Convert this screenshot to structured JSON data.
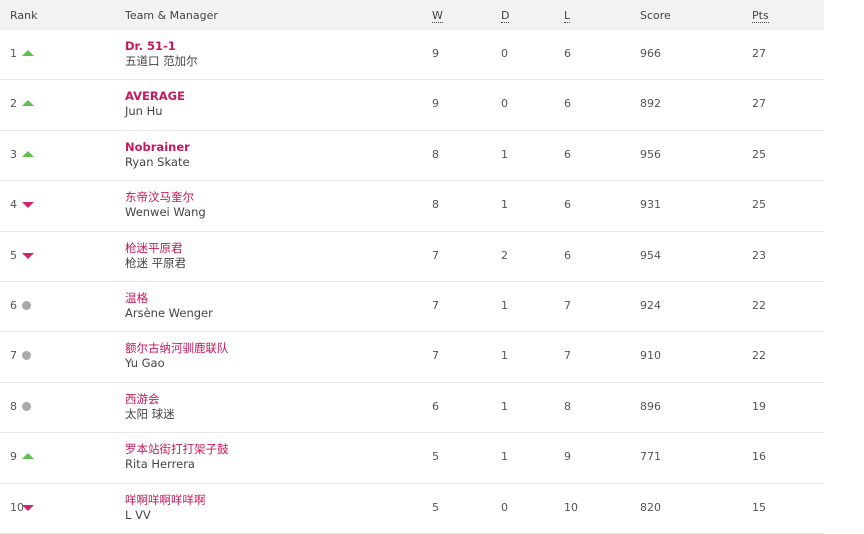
{
  "headers": {
    "rank": "Rank",
    "team": "Team & Manager",
    "w": "W",
    "d": "D",
    "l": "L",
    "score": "Score",
    "pts": "Pts"
  },
  "colors": {
    "team": "#c8185a",
    "up": "#5cc04a",
    "down": "#d0246a",
    "same": "#aaaaaa",
    "header_bg": "#f2f2f2"
  },
  "rows": [
    {
      "rank": "1",
      "trend": "up",
      "team": "Dr. 51-1",
      "bold": true,
      "manager": "五道口 范加尔",
      "w": "9",
      "d": "0",
      "l": "6",
      "score": "966",
      "pts": "27"
    },
    {
      "rank": "2",
      "trend": "up",
      "team": "AVERAGE",
      "bold": true,
      "manager": "Jun Hu",
      "w": "9",
      "d": "0",
      "l": "6",
      "score": "892",
      "pts": "27"
    },
    {
      "rank": "3",
      "trend": "up",
      "team": "Nobrainer",
      "bold": true,
      "manager": "Ryan Skate",
      "w": "8",
      "d": "1",
      "l": "6",
      "score": "956",
      "pts": "25"
    },
    {
      "rank": "4",
      "trend": "down",
      "team": "东帝汶马奎尔",
      "bold": false,
      "manager": "Wenwei Wang",
      "w": "8",
      "d": "1",
      "l": "6",
      "score": "931",
      "pts": "25"
    },
    {
      "rank": "5",
      "trend": "down",
      "team": "枪迷平原君",
      "bold": false,
      "manager": "枪迷 平原君",
      "w": "7",
      "d": "2",
      "l": "6",
      "score": "954",
      "pts": "23"
    },
    {
      "rank": "6",
      "trend": "same",
      "team": "温格",
      "bold": false,
      "manager": "Arsène Wenger",
      "w": "7",
      "d": "1",
      "l": "7",
      "score": "924",
      "pts": "22"
    },
    {
      "rank": "7",
      "trend": "same",
      "team": "额尔古纳河驯鹿联队",
      "bold": false,
      "manager": "Yu Gao",
      "w": "7",
      "d": "1",
      "l": "7",
      "score": "910",
      "pts": "22"
    },
    {
      "rank": "8",
      "trend": "same",
      "team": "西游会",
      "bold": false,
      "manager": "太阳 球迷",
      "w": "6",
      "d": "1",
      "l": "8",
      "score": "896",
      "pts": "19"
    },
    {
      "rank": "9",
      "trend": "up",
      "team": "罗本站街打打架子鼓",
      "bold": false,
      "manager": "Rita Herrera",
      "w": "5",
      "d": "1",
      "l": "9",
      "score": "771",
      "pts": "16"
    },
    {
      "rank": "10",
      "trend": "down",
      "team": "咩啊咩啊咩咩啊",
      "bold": false,
      "manager": "L VV",
      "w": "5",
      "d": "0",
      "l": "10",
      "score": "820",
      "pts": "15"
    }
  ]
}
